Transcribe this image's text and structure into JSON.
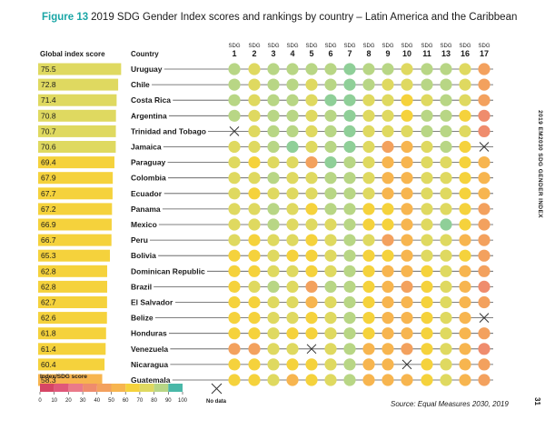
{
  "figure": {
    "label": "Figure 13",
    "text": "2019 SDG Gender Index scores and rankings by country – Latin America and the Caribbean"
  },
  "side_label": "2019 EM2030 SDG GENDER INDEX",
  "page_number": "31",
  "source": "Source: Equal Measures 2030, 2019",
  "chart_data": {
    "type": "table",
    "score_header": "Global index score",
    "country_header": "Country",
    "sdg_prefix": "SDG",
    "sdgs": [
      "1",
      "2",
      "3",
      "4",
      "5",
      "6",
      "7",
      "8",
      "9",
      "10",
      "11",
      "13",
      "16",
      "17"
    ],
    "score_range": [
      0,
      100
    ],
    "rows": [
      {
        "country": "Uruguay",
        "score": "75.5",
        "sdg": [
          85,
          70,
          80,
          85,
          80,
          85,
          95,
          80,
          80,
          75,
          80,
          80,
          75,
          45
        ]
      },
      {
        "country": "Chile",
        "score": "72.8",
        "sdg": [
          85,
          75,
          85,
          80,
          75,
          80,
          95,
          80,
          75,
          70,
          80,
          80,
          75,
          45
        ]
      },
      {
        "country": "Costa Rica",
        "score": "71.4",
        "sdg": [
          80,
          75,
          85,
          80,
          70,
          95,
          95,
          75,
          75,
          65,
          75,
          80,
          70,
          45
        ]
      },
      {
        "country": "Argentina",
        "score": "70.8",
        "sdg": [
          80,
          70,
          80,
          80,
          75,
          85,
          95,
          75,
          75,
          65,
          80,
          80,
          65,
          35
        ]
      },
      {
        "country": "Trinidad and Tobago",
        "score": "70.7",
        "sdg": [
          null,
          70,
          80,
          80,
          70,
          85,
          95,
          75,
          75,
          70,
          80,
          80,
          70,
          35
        ]
      },
      {
        "country": "Jamaica",
        "score": "70.6",
        "sdg": [
          75,
          70,
          80,
          95,
          75,
          85,
          95,
          75,
          45,
          55,
          75,
          80,
          65,
          null
        ]
      },
      {
        "country": "Paraguay",
        "score": "69.4",
        "sdg": [
          75,
          65,
          75,
          75,
          45,
          90,
          85,
          70,
          55,
          55,
          70,
          75,
          60,
          50
        ]
      },
      {
        "country": "Colombia",
        "score": "67.9",
        "sdg": [
          70,
          70,
          80,
          75,
          70,
          80,
          85,
          70,
          55,
          55,
          70,
          75,
          60,
          50
        ]
      },
      {
        "country": "Ecuador",
        "score": "67.7",
        "sdg": [
          70,
          65,
          75,
          75,
          70,
          80,
          85,
          70,
          55,
          55,
          70,
          75,
          60,
          50
        ]
      },
      {
        "country": "Panama",
        "score": "67.2",
        "sdg": [
          70,
          70,
          80,
          75,
          65,
          80,
          85,
          65,
          60,
          50,
          70,
          75,
          60,
          45
        ]
      },
      {
        "country": "Mexico",
        "score": "66.9",
        "sdg": [
          70,
          70,
          80,
          75,
          70,
          75,
          85,
          65,
          60,
          55,
          70,
          90,
          60,
          40
        ]
      },
      {
        "country": "Peru",
        "score": "66.7",
        "sdg": [
          70,
          65,
          75,
          75,
          65,
          75,
          85,
          70,
          40,
          55,
          70,
          75,
          55,
          45
        ]
      },
      {
        "country": "Bolivia",
        "score": "65.3",
        "sdg": [
          65,
          60,
          75,
          60,
          65,
          75,
          80,
          65,
          60,
          55,
          70,
          75,
          60,
          45
        ]
      },
      {
        "country": "Dominican Republic",
        "score": "62.8",
        "sdg": [
          65,
          65,
          75,
          75,
          60,
          75,
          85,
          60,
          55,
          50,
          65,
          75,
          55,
          45
        ]
      },
      {
        "country": "Brazil",
        "score": "62.8",
        "sdg": [
          65,
          70,
          80,
          75,
          40,
          80,
          85,
          65,
          55,
          45,
          65,
          75,
          55,
          30
        ]
      },
      {
        "country": "El Salvador",
        "score": "62.7",
        "sdg": [
          65,
          65,
          75,
          70,
          55,
          75,
          85,
          60,
          55,
          50,
          65,
          75,
          50,
          45
        ]
      },
      {
        "country": "Belize",
        "score": "62.6",
        "sdg": [
          65,
          65,
          75,
          70,
          60,
          75,
          80,
          60,
          55,
          55,
          65,
          75,
          50,
          null
        ]
      },
      {
        "country": "Honduras",
        "score": "61.8",
        "sdg": [
          60,
          60,
          75,
          60,
          60,
          75,
          80,
          60,
          55,
          50,
          60,
          75,
          55,
          45
        ]
      },
      {
        "country": "Venezuela",
        "score": "61.4",
        "sdg": [
          45,
          45,
          75,
          75,
          null,
          75,
          85,
          55,
          55,
          45,
          60,
          75,
          50,
          35
        ]
      },
      {
        "country": "Nicaragua",
        "score": "60.4",
        "sdg": [
          60,
          60,
          75,
          60,
          65,
          75,
          80,
          55,
          55,
          null,
          60,
          75,
          50,
          45
        ]
      },
      {
        "country": "Guatemala",
        "score": "58.3",
        "sdg": [
          60,
          60,
          70,
          55,
          60,
          75,
          80,
          55,
          50,
          50,
          60,
          75,
          50,
          45
        ]
      }
    ],
    "legend": {
      "title": "Index/SDG score",
      "ticks": [
        "0",
        "10",
        "20",
        "30",
        "40",
        "50",
        "60",
        "70",
        "80",
        "90",
        "100"
      ],
      "colors": [
        "#d64565",
        "#e0587a",
        "#ea7a8a",
        "#ef8c6d",
        "#f3a15e",
        "#f7b54f",
        "#f5d23c",
        "#dfd960",
        "#b8d685",
        "#8fcf98",
        "#49b8a8"
      ],
      "no_data_label": "No data"
    }
  }
}
